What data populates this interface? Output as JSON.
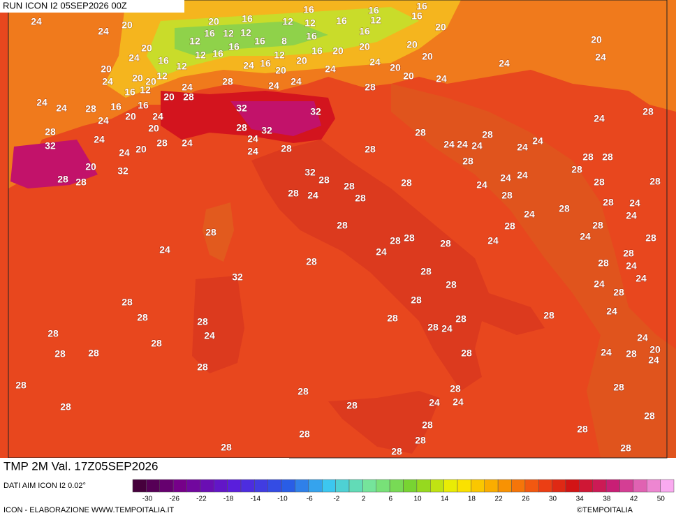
{
  "header": {
    "title": "RUN ICON I2 05SEP2026 00Z"
  },
  "map_labels": [
    24,
    20,
    24,
    16,
    16,
    16,
    16,
    12,
    12,
    12,
    16,
    16,
    20,
    20,
    12,
    16,
    12,
    12,
    16,
    8,
    12,
    16,
    16,
    20,
    16,
    16,
    12,
    16,
    24,
    16,
    20,
    20,
    20,
    20,
    20,
    24,
    24,
    24,
    24,
    20,
    20,
    12,
    24,
    16,
    20,
    24,
    20,
    12,
    24,
    20,
    24,
    24,
    28,
    16,
    12,
    16,
    20,
    16,
    20,
    24,
    28,
    24,
    24,
    28,
    20,
    20,
    24,
    32,
    32,
    28,
    28,
    32,
    24,
    28,
    32,
    20,
    24,
    28,
    24,
    20,
    24,
    24,
    24,
    28,
    28,
    28,
    28,
    24,
    24,
    24,
    24,
    24,
    24,
    28,
    28,
    28,
    28,
    28,
    24,
    24,
    24,
    28,
    28,
    28,
    28,
    24,
    24,
    28,
    24,
    28,
    24,
    28,
    20,
    28,
    28,
    32,
    32,
    28,
    28,
    24,
    28,
    28,
    28,
    28,
    24,
    28,
    24,
    28,
    28,
    28,
    24,
    28,
    28,
    32,
    28,
    28,
    28,
    28,
    28,
    28,
    28,
    28,
    28,
    24,
    24,
    28,
    28,
    28,
    28,
    28,
    28,
    28,
    28,
    24,
    24,
    24,
    28,
    24,
    24,
    20,
    24,
    24,
    28,
    28,
    28,
    28,
    28,
    28,
    24,
    24,
    28,
    28,
    28,
    28,
    28,
    28,
    28,
    28,
    28,
    28
  ],
  "footer": {
    "variable": "TMP 2M Val. 17Z05SEP2026",
    "source": "DATI AIM ICON I2 0.02°",
    "credit": "ICON - ELABORAZIONE WWW.TEMPOITALIA.IT",
    "brand": "©TEMPOITALIA"
  },
  "colorbar": {
    "labels": [
      -30,
      -26,
      -22,
      -18,
      -14,
      -10,
      -6,
      -2,
      2,
      6,
      10,
      14,
      18,
      22,
      26,
      30,
      34,
      38,
      42,
      50
    ]
  }
}
